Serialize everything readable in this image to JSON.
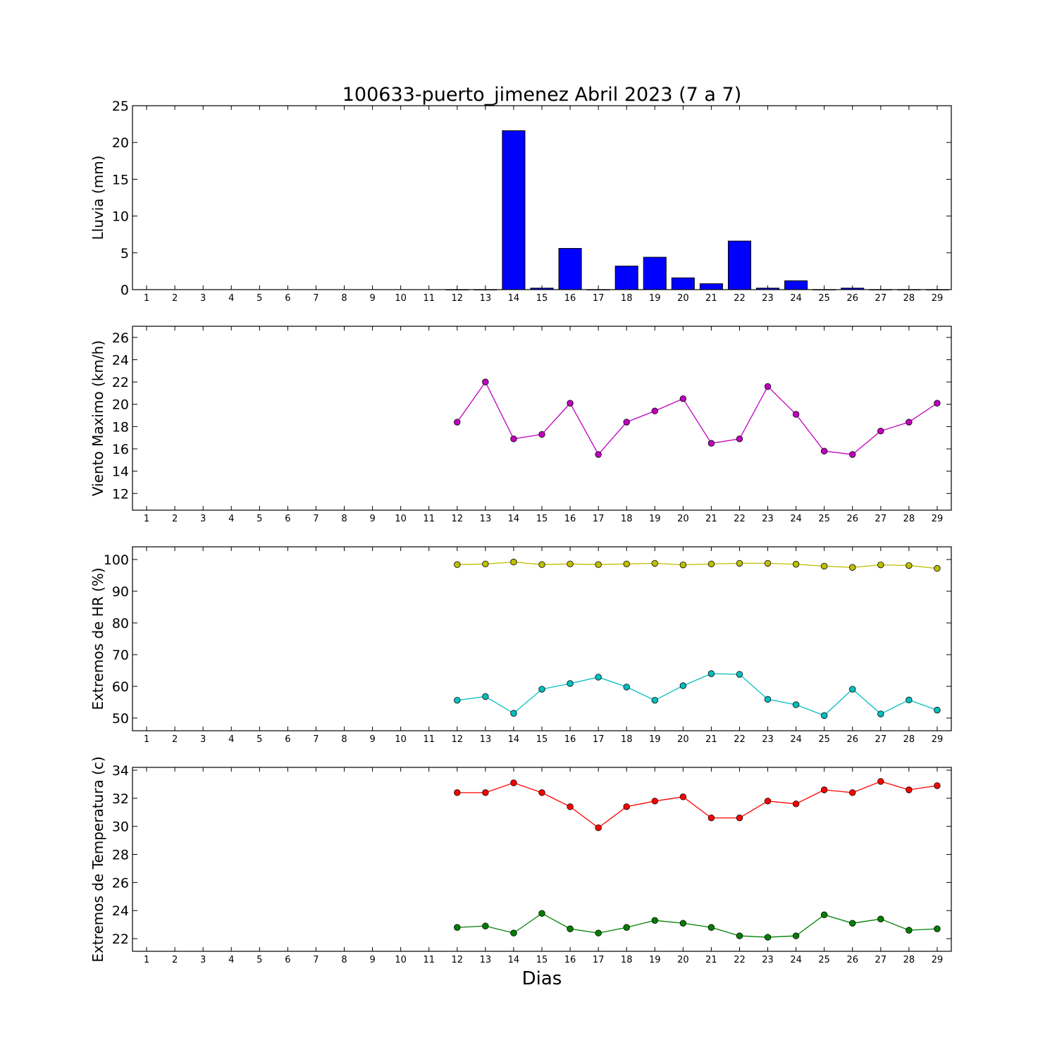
{
  "title": "100633-puerto_jimenez Abril 2023  (7 a 7)",
  "xlabel": "Dias",
  "chart_data": [
    {
      "type": "bar",
      "ylabel": "Lluvia (mm)",
      "ylim": [
        0,
        25
      ],
      "yticks": [
        0,
        5,
        10,
        15,
        20,
        25
      ],
      "xlim": [
        0.5,
        29.5
      ],
      "categories": [
        1,
        2,
        3,
        4,
        5,
        6,
        7,
        8,
        9,
        10,
        11,
        12,
        13,
        14,
        15,
        16,
        17,
        18,
        19,
        20,
        21,
        22,
        23,
        24,
        25,
        26,
        27,
        28,
        29
      ],
      "series": [
        {
          "color": "#0000ff",
          "values": [
            null,
            null,
            null,
            null,
            null,
            null,
            null,
            null,
            null,
            null,
            null,
            0,
            0,
            21.6,
            0.2,
            5.6,
            0,
            3.2,
            4.4,
            1.6,
            0.8,
            6.6,
            0.2,
            1.2,
            0,
            0.2,
            0,
            0,
            0
          ]
        }
      ]
    },
    {
      "type": "line",
      "ylabel": "Viento Maximo (km/h)",
      "ylim": [
        10.5,
        27
      ],
      "yticks": [
        12,
        14,
        16,
        18,
        20,
        22,
        24,
        26
      ],
      "xlim": [
        0.5,
        29.5
      ],
      "categories": [
        1,
        2,
        3,
        4,
        5,
        6,
        7,
        8,
        9,
        10,
        11,
        12,
        13,
        14,
        15,
        16,
        17,
        18,
        19,
        20,
        21,
        22,
        23,
        24,
        25,
        26,
        27,
        28,
        29
      ],
      "series": [
        {
          "color": "#bf00bf",
          "values": [
            null,
            null,
            null,
            null,
            null,
            null,
            null,
            null,
            null,
            null,
            null,
            18.4,
            22.0,
            16.9,
            17.3,
            20.1,
            15.5,
            18.4,
            19.4,
            20.5,
            16.5,
            16.9,
            21.6,
            19.1,
            15.8,
            15.5,
            17.6,
            18.4,
            20.1
          ]
        }
      ]
    },
    {
      "type": "line",
      "ylabel": "Extremos de HR (%)",
      "ylim": [
        46,
        104
      ],
      "yticks": [
        50,
        60,
        70,
        80,
        90,
        100
      ],
      "xlim": [
        0.5,
        29.5
      ],
      "categories": [
        1,
        2,
        3,
        4,
        5,
        6,
        7,
        8,
        9,
        10,
        11,
        12,
        13,
        14,
        15,
        16,
        17,
        18,
        19,
        20,
        21,
        22,
        23,
        24,
        25,
        26,
        27,
        28,
        29
      ],
      "series": [
        {
          "color": "#bfbf00",
          "values": [
            null,
            null,
            null,
            null,
            null,
            null,
            null,
            null,
            null,
            null,
            null,
            98.4,
            98.6,
            99.2,
            98.4,
            98.6,
            98.4,
            98.6,
            98.8,
            98.3,
            98.6,
            98.8,
            98.8,
            98.5,
            97.9,
            97.5,
            98.3,
            98.1,
            97.2
          ]
        },
        {
          "color": "#00bfbf",
          "values": [
            null,
            null,
            null,
            null,
            null,
            null,
            null,
            null,
            null,
            null,
            null,
            55.6,
            56.8,
            51.5,
            59.1,
            60.9,
            62.9,
            59.8,
            55.6,
            60.2,
            64.0,
            63.8,
            55.9,
            54.2,
            50.8,
            59.1,
            51.3,
            55.7,
            52.5
          ]
        }
      ]
    },
    {
      "type": "line",
      "ylabel": "Extremos de Temperatura (c)",
      "ylim": [
        21.1,
        34.2
      ],
      "yticks": [
        22,
        24,
        26,
        28,
        30,
        32,
        34
      ],
      "xlim": [
        0.5,
        29.5
      ],
      "categories": [
        1,
        2,
        3,
        4,
        5,
        6,
        7,
        8,
        9,
        10,
        11,
        12,
        13,
        14,
        15,
        16,
        17,
        18,
        19,
        20,
        21,
        22,
        23,
        24,
        25,
        26,
        27,
        28,
        29
      ],
      "series": [
        {
          "color": "#ff0000",
          "values": [
            null,
            null,
            null,
            null,
            null,
            null,
            null,
            null,
            null,
            null,
            null,
            32.4,
            32.4,
            33.1,
            32.4,
            31.4,
            29.9,
            31.4,
            31.8,
            32.1,
            30.6,
            30.6,
            31.8,
            31.6,
            32.6,
            32.4,
            33.2,
            32.6,
            32.9
          ]
        },
        {
          "color": "#008000",
          "values": [
            null,
            null,
            null,
            null,
            null,
            null,
            null,
            null,
            null,
            null,
            null,
            22.8,
            22.9,
            22.4,
            23.8,
            22.7,
            22.4,
            22.8,
            23.3,
            23.1,
            22.8,
            22.2,
            22.1,
            22.2,
            23.7,
            23.1,
            23.4,
            22.6,
            22.7
          ]
        }
      ]
    }
  ]
}
